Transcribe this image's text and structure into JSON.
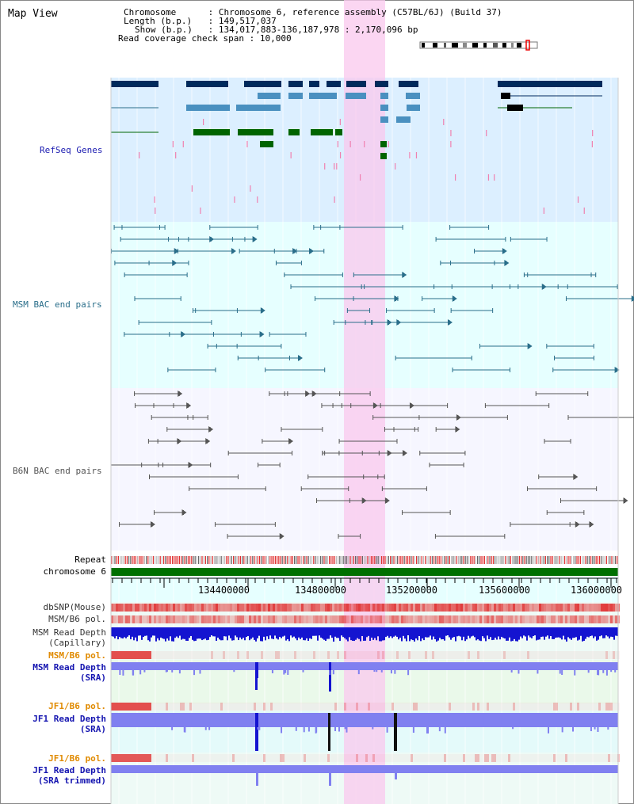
{
  "page": {
    "title": "Map View",
    "header": {
      "chromosome_key": "Chromosome",
      "chromosome_val": "Chromosome 6, reference assembly (C57BL/6J) (Build 37)",
      "length_key": "Length (b.p.)",
      "length_val": "149,517,037",
      "show_key": "Show (b.p.)",
      "show_val": "134,017,883-136,187,978 : 2,170,096 bp",
      "coverage_key": "Read coverage check span",
      "coverage_val": "10,000"
    }
  },
  "tracks": {
    "refseq": "RefSeq Genes",
    "msm_bac": "MSM BAC end pairs",
    "b6n_bac": "B6N BAC end pairs",
    "repeat": "Repeat",
    "chromosome": "chromosome 6",
    "dbsnp": "dbSNP(Mouse)",
    "msm_b6_pol": "MSM/B6 pol.",
    "msm_read_depth_cap_1": "MSM Read Depth",
    "msm_read_depth_cap_2": "(Capillary)",
    "msm_b6_pol_2": "MSM/B6 pol.",
    "msm_read_depth_sra_1": "MSM Read Depth",
    "msm_read_depth_sra_2": "(SRA)",
    "jf1_b6_pol": "JF1/B6 pol.",
    "jf1_read_depth_sra_1": "JF1 Read Depth",
    "jf1_read_depth_sra_2": "(SRA)",
    "jf1_b6_pol_2": "JF1/B6 pol.",
    "jf1_read_depth_trim_1": "JF1 Read Depth",
    "jf1_read_depth_trim_2": "(SRA trimmed)"
  },
  "ruler": {
    "ticks": [
      "134400000",
      "134800000",
      "135200000",
      "135600000",
      "136000000"
    ]
  },
  "colors": {
    "refseq_dark": "#002a5c",
    "refseq_mid": "#4a90c0",
    "refseq_green": "#006400",
    "msm_line": "#2a6e8a",
    "b6n_line": "#555555",
    "highlight": "#f9c8ee",
    "chromosome": "#007000",
    "depth_blue": "#1414d0",
    "depth_light": "#8080f0",
    "pol_red": "#e03030"
  }
}
